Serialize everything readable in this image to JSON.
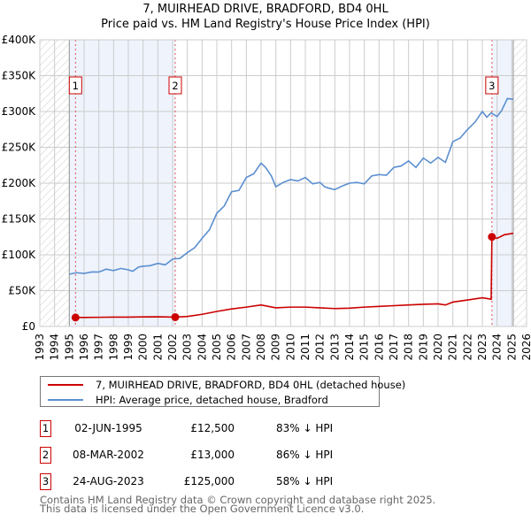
{
  "title": "7, MUIRHEAD DRIVE, BRADFORD, BD4 0HL",
  "subtitle": "Price paid vs. HM Land Registry's House Price Index (HPI)",
  "chart_data": {
    "type": "line",
    "title": "7, MUIRHEAD DRIVE, BRADFORD, BD4 0HL — Price paid vs. HM Land Registry's House Price Index (HPI)",
    "xlim": [
      1993,
      2026
    ],
    "ylim": [
      0,
      400000
    ],
    "x_ticks": [
      "1993",
      "1994",
      "1995",
      "1996",
      "1997",
      "1998",
      "1999",
      "2000",
      "2001",
      "2002",
      "2003",
      "2004",
      "2005",
      "2006",
      "2007",
      "2008",
      "2009",
      "2010",
      "2011",
      "2012",
      "2013",
      "2014",
      "2015",
      "2016",
      "2017",
      "2018",
      "2019",
      "2020",
      "2021",
      "2022",
      "2023",
      "2024",
      "2025",
      "2026"
    ],
    "y_ticks": [
      {
        "v": 0,
        "label": "£0"
      },
      {
        "v": 50000,
        "label": "£50K"
      },
      {
        "v": 100000,
        "label": "£100K"
      },
      {
        "v": 150000,
        "label": "£150K"
      },
      {
        "v": 200000,
        "label": "£200K"
      },
      {
        "v": 250000,
        "label": "£250K"
      },
      {
        "v": 300000,
        "label": "£300K"
      },
      {
        "v": 350000,
        "label": "£350K"
      },
      {
        "v": 400000,
        "label": "£400K"
      }
    ],
    "grid": true,
    "hatched_ranges": [
      [
        1993,
        1995
      ],
      [
        2025.1,
        2026
      ]
    ],
    "shaded_ranges": [
      [
        1995,
        2002.18
      ],
      [
        2023.65,
        2025.1
      ]
    ],
    "series": [
      {
        "name": "7, MUIRHEAD DRIVE, BRADFORD, BD4 0HL (detached house)",
        "color": "#cc0000",
        "x": [
          1995.42,
          1996,
          1997,
          1998,
          1999,
          2000,
          2001,
          2002.18,
          2003,
          2004,
          2005,
          2006,
          2007,
          2008,
          2009,
          2010,
          2011,
          2012,
          2013,
          2014,
          2015,
          2016,
          2017,
          2018,
          2019,
          2020,
          2020.5,
          2021,
          2022,
          2023,
          2023.6,
          2023.65,
          2024,
          2024.5,
          2025.1
        ],
        "y": [
          12500,
          12600,
          12800,
          13000,
          13000,
          13300,
          13500,
          13000,
          14000,
          17000,
          21000,
          24500,
          27000,
          30000,
          26000,
          27000,
          27000,
          26000,
          25000,
          25500,
          27000,
          28000,
          29000,
          30000,
          31000,
          31500,
          30000,
          34000,
          37000,
          40000,
          38000,
          125000,
          123000,
          128000,
          130000
        ]
      },
      {
        "name": "HPI: Average price, detached house, Bradford",
        "color": "#5b8fd0",
        "x": [
          1995,
          1995.5,
          1996,
          1996.5,
          1997,
          1997.5,
          1998,
          1998.5,
          1999,
          1999.3,
          1999.7,
          2000,
          2000.5,
          2001,
          2001.5,
          2002,
          2002.5,
          2003,
          2003.5,
          2004,
          2004.5,
          2005,
          2005.5,
          2006,
          2006.5,
          2007,
          2007.5,
          2008,
          2008.3,
          2008.7,
          2009,
          2009.5,
          2010,
          2010.5,
          2011,
          2011.5,
          2012,
          2012.3,
          2012.6,
          2013,
          2013.5,
          2014,
          2014.5,
          2015,
          2015.5,
          2016,
          2016.5,
          2017,
          2017.5,
          2018,
          2018.5,
          2019,
          2019.5,
          2020,
          2020.5,
          2021,
          2021.5,
          2022,
          2022.5,
          2023,
          2023.3,
          2023.6,
          2024,
          2024.3,
          2024.7,
          2025.1
        ],
        "y": [
          73000,
          75000,
          74000,
          76000,
          76000,
          80000,
          78000,
          81000,
          79000,
          77000,
          83000,
          84000,
          85000,
          88000,
          86000,
          94000,
          95000,
          103000,
          110000,
          123000,
          135000,
          158000,
          168000,
          188000,
          190000,
          208000,
          213000,
          228000,
          222000,
          210000,
          195000,
          201000,
          205000,
          203000,
          208000,
          199000,
          201000,
          195000,
          193000,
          191000,
          196000,
          200000,
          201000,
          199000,
          210000,
          212000,
          211000,
          222000,
          224000,
          231000,
          222000,
          235000,
          228000,
          236000,
          229000,
          258000,
          263000,
          275000,
          285000,
          300000,
          292000,
          298000,
          293000,
          301000,
          318000,
          317000
        ]
      }
    ],
    "annotations": [
      {
        "label": "1",
        "x": 1995.42,
        "y": 12500
      },
      {
        "label": "2",
        "x": 2002.18,
        "y": 13000
      },
      {
        "label": "3",
        "x": 2023.65,
        "y": 125000
      }
    ]
  },
  "legend": [
    "7, MUIRHEAD DRIVE, BRADFORD, BD4 0HL (detached house)",
    "HPI: Average price, detached house, Bradford"
  ],
  "transactions": [
    {
      "num": "1",
      "date": "02-JUN-1995",
      "price": "£12,500",
      "hpi": "83% ↓ HPI"
    },
    {
      "num": "2",
      "date": "08-MAR-2002",
      "price": "£13,000",
      "hpi": "86% ↓ HPI"
    },
    {
      "num": "3",
      "date": "24-AUG-2023",
      "price": "£125,000",
      "hpi": "58% ↓ HPI"
    }
  ],
  "footer": [
    "Contains HM Land Registry data © Crown copyright and database right 2025.",
    "This data is licensed under the Open Government Licence v3.0."
  ]
}
